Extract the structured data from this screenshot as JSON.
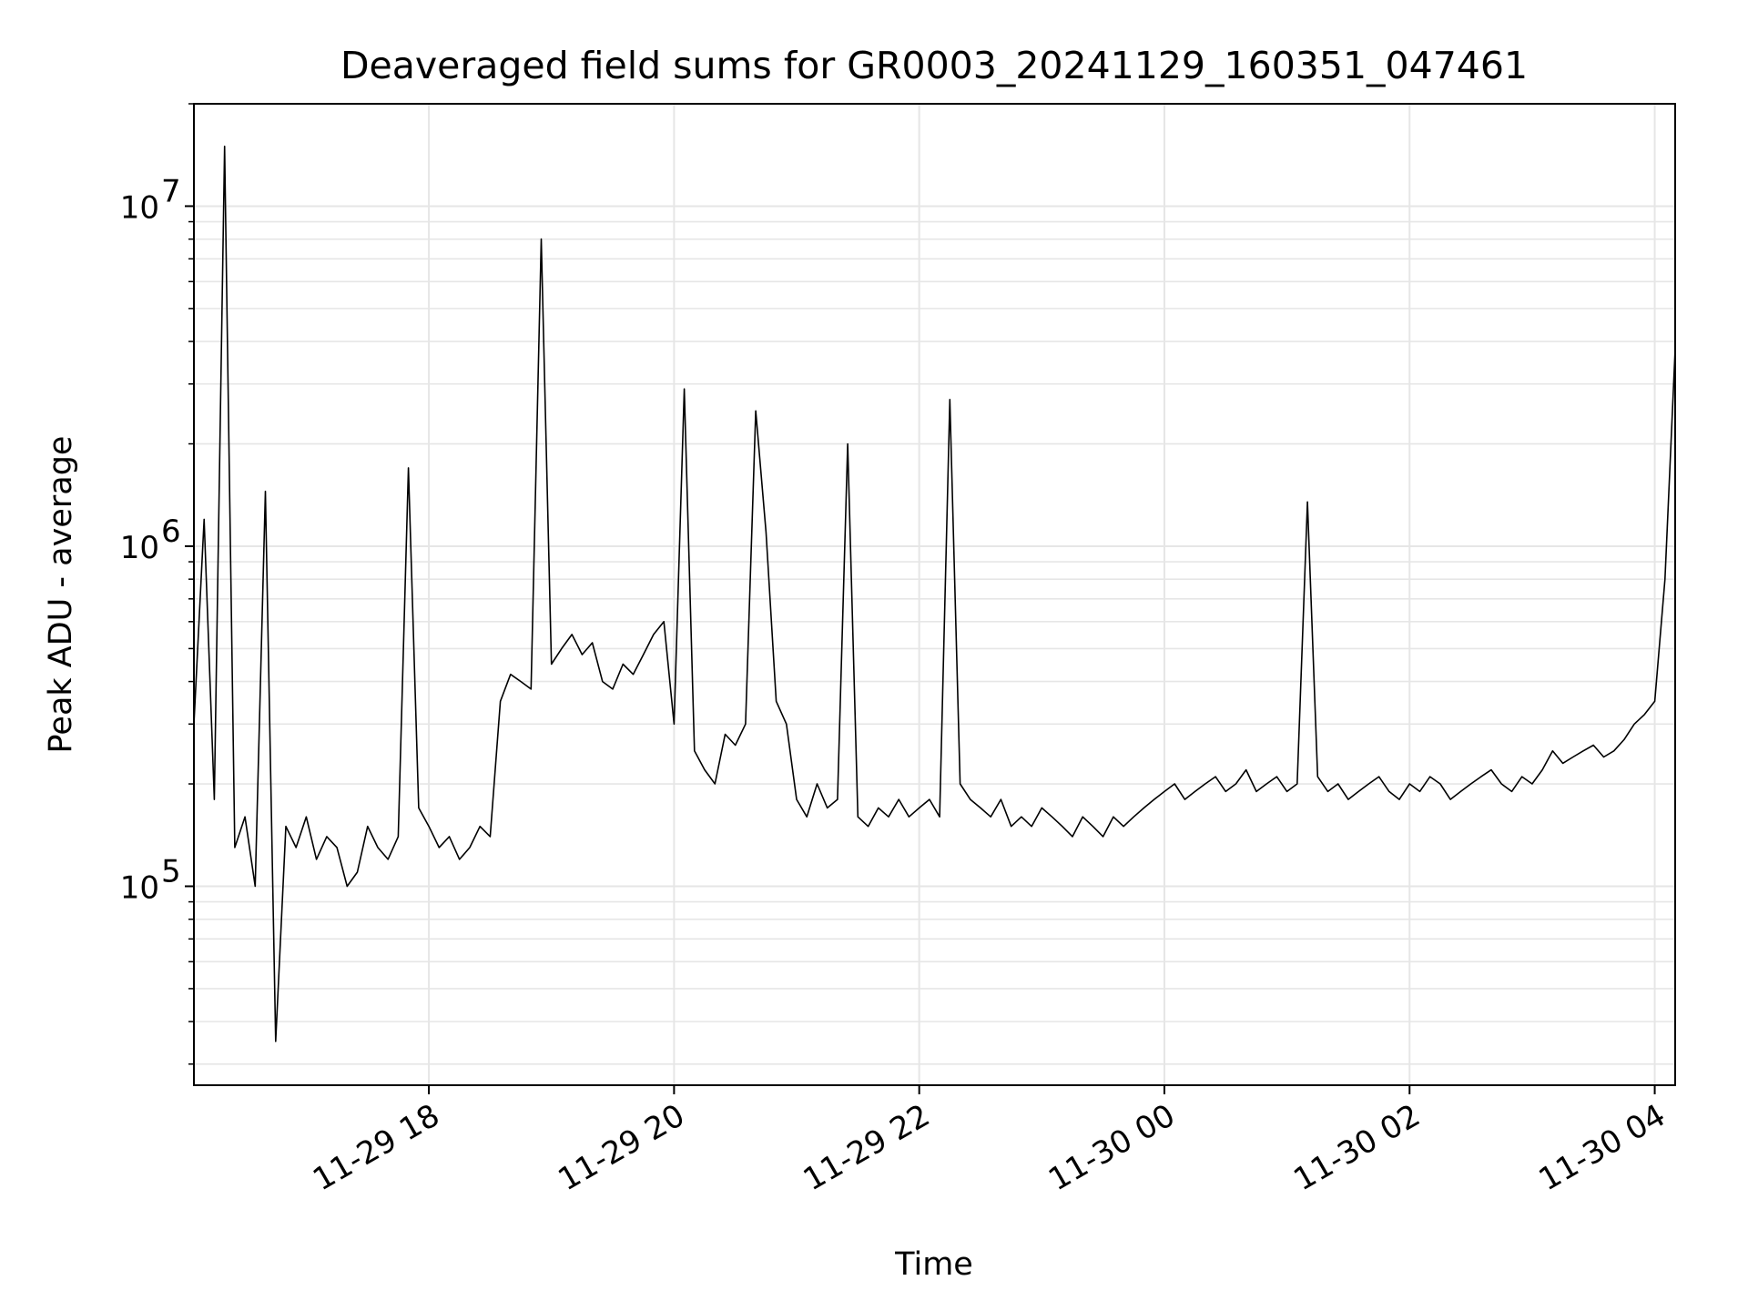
{
  "chart_data": {
    "type": "line",
    "title": "Deaveraged field sums for GR0003_20241129_160351_047461",
    "xlabel": "Time",
    "ylabel": "Peak ADU - average",
    "yscale": "log",
    "ylim": [
      26000,
      20000000
    ],
    "xlim": [
      "2024-11-29 16:05",
      "2024-11-30 04:10"
    ],
    "grid": true,
    "line_color": "#000000",
    "grid_color": "#e6e6e6",
    "x_ticks": [
      {
        "value": "2024-11-29 18:00",
        "label": "11-29 18"
      },
      {
        "value": "2024-11-29 20:00",
        "label": "11-29 20"
      },
      {
        "value": "2024-11-29 22:00",
        "label": "11-29 22"
      },
      {
        "value": "2024-11-30 00:00",
        "label": "11-30 00"
      },
      {
        "value": "2024-11-30 02:00",
        "label": "11-30 02"
      },
      {
        "value": "2024-11-30 04:00",
        "label": "11-30 04"
      }
    ],
    "y_ticks": [
      {
        "value": 100000,
        "base": "10",
        "exp": "5"
      },
      {
        "value": 1000000,
        "base": "10",
        "exp": "6"
      },
      {
        "value": 10000000,
        "base": "10",
        "exp": "7"
      }
    ],
    "series": [
      {
        "x": [
          "2024-11-29 16:05",
          "2024-11-29 16:10",
          "2024-11-29 16:15",
          "2024-11-29 16:20",
          "2024-11-29 16:25",
          "2024-11-29 16:30",
          "2024-11-29 16:35",
          "2024-11-29 16:40",
          "2024-11-29 16:45",
          "2024-11-29 16:50",
          "2024-11-29 16:55",
          "2024-11-29 17:00",
          "2024-11-29 17:05",
          "2024-11-29 17:10",
          "2024-11-29 17:15",
          "2024-11-29 17:20",
          "2024-11-29 17:25",
          "2024-11-29 17:30",
          "2024-11-29 17:35",
          "2024-11-29 17:40",
          "2024-11-29 17:45",
          "2024-11-29 17:50",
          "2024-11-29 17:55",
          "2024-11-29 18:00",
          "2024-11-29 18:05",
          "2024-11-29 18:10",
          "2024-11-29 18:15",
          "2024-11-29 18:20",
          "2024-11-29 18:25",
          "2024-11-29 18:30",
          "2024-11-29 18:35",
          "2024-11-29 18:40",
          "2024-11-29 18:45",
          "2024-11-29 18:50",
          "2024-11-29 18:55",
          "2024-11-29 19:00",
          "2024-11-29 19:05",
          "2024-11-29 19:10",
          "2024-11-29 19:15",
          "2024-11-29 19:20",
          "2024-11-29 19:25",
          "2024-11-29 19:30",
          "2024-11-29 19:35",
          "2024-11-29 19:40",
          "2024-11-29 19:45",
          "2024-11-29 19:50",
          "2024-11-29 19:55",
          "2024-11-29 20:00",
          "2024-11-29 20:05",
          "2024-11-29 20:10",
          "2024-11-29 20:15",
          "2024-11-29 20:20",
          "2024-11-29 20:25",
          "2024-11-29 20:30",
          "2024-11-29 20:35",
          "2024-11-29 20:40",
          "2024-11-29 20:45",
          "2024-11-29 20:50",
          "2024-11-29 20:55",
          "2024-11-29 21:00",
          "2024-11-29 21:05",
          "2024-11-29 21:10",
          "2024-11-29 21:15",
          "2024-11-29 21:20",
          "2024-11-29 21:25",
          "2024-11-29 21:30",
          "2024-11-29 21:35",
          "2024-11-29 21:40",
          "2024-11-29 21:45",
          "2024-11-29 21:50",
          "2024-11-29 21:55",
          "2024-11-29 22:00",
          "2024-11-29 22:05",
          "2024-11-29 22:10",
          "2024-11-29 22:15",
          "2024-11-29 22:20",
          "2024-11-29 22:25",
          "2024-11-29 22:30",
          "2024-11-29 22:35",
          "2024-11-29 22:40",
          "2024-11-29 22:45",
          "2024-11-29 22:50",
          "2024-11-29 22:55",
          "2024-11-29 23:00",
          "2024-11-29 23:05",
          "2024-11-29 23:10",
          "2024-11-29 23:15",
          "2024-11-29 23:20",
          "2024-11-29 23:25",
          "2024-11-29 23:30",
          "2024-11-29 23:35",
          "2024-11-29 23:40",
          "2024-11-29 23:45",
          "2024-11-29 23:50",
          "2024-11-29 23:55",
          "2024-11-30 00:00",
          "2024-11-30 00:05",
          "2024-11-30 00:10",
          "2024-11-30 00:15",
          "2024-11-30 00:20",
          "2024-11-30 00:25",
          "2024-11-30 00:30",
          "2024-11-30 00:35",
          "2024-11-30 00:40",
          "2024-11-30 00:45",
          "2024-11-30 00:50",
          "2024-11-30 00:55",
          "2024-11-30 01:00",
          "2024-11-30 01:05",
          "2024-11-30 01:10",
          "2024-11-30 01:15",
          "2024-11-30 01:20",
          "2024-11-30 01:25",
          "2024-11-30 01:30",
          "2024-11-30 01:35",
          "2024-11-30 01:40",
          "2024-11-30 01:45",
          "2024-11-30 01:50",
          "2024-11-30 01:55",
          "2024-11-30 02:00",
          "2024-11-30 02:05",
          "2024-11-30 02:10",
          "2024-11-30 02:15",
          "2024-11-30 02:20",
          "2024-11-30 02:25",
          "2024-11-30 02:30",
          "2024-11-30 02:35",
          "2024-11-30 02:40",
          "2024-11-30 02:45",
          "2024-11-30 02:50",
          "2024-11-30 02:55",
          "2024-11-30 03:00",
          "2024-11-30 03:05",
          "2024-11-30 03:10",
          "2024-11-30 03:15",
          "2024-11-30 03:20",
          "2024-11-30 03:25",
          "2024-11-30 03:30",
          "2024-11-30 03:35",
          "2024-11-30 03:40",
          "2024-11-30 03:45",
          "2024-11-30 03:50",
          "2024-11-30 03:55",
          "2024-11-30 04:00",
          "2024-11-30 04:05",
          "2024-11-30 04:10"
        ],
        "y": [
          300000,
          1200000,
          180000,
          15000000,
          130000,
          160000,
          100000,
          1450000,
          35000,
          150000,
          130000,
          160000,
          120000,
          140000,
          130000,
          100000,
          110000,
          150000,
          130000,
          120000,
          140000,
          1700000,
          170000,
          150000,
          130000,
          140000,
          120000,
          130000,
          150000,
          140000,
          350000,
          420000,
          400000,
          380000,
          8000000,
          450000,
          500000,
          550000,
          480000,
          520000,
          400000,
          380000,
          450000,
          420000,
          480000,
          550000,
          600000,
          300000,
          2900000,
          250000,
          220000,
          200000,
          280000,
          260000,
          300000,
          2500000,
          1100000,
          350000,
          300000,
          180000,
          160000,
          200000,
          170000,
          180000,
          2000000,
          160000,
          150000,
          170000,
          160000,
          180000,
          160000,
          170000,
          180000,
          160000,
          2700000,
          200000,
          180000,
          170000,
          160000,
          180000,
          150000,
          160000,
          150000,
          170000,
          160000,
          150000,
          140000,
          160000,
          150000,
          140000,
          160000,
          150000,
          160000,
          170000,
          180000,
          190000,
          200000,
          180000,
          190000,
          200000,
          210000,
          190000,
          200000,
          220000,
          190000,
          200000,
          210000,
          190000,
          200000,
          1350000,
          210000,
          190000,
          200000,
          180000,
          190000,
          200000,
          210000,
          190000,
          180000,
          200000,
          190000,
          210000,
          200000,
          180000,
          190000,
          200000,
          210000,
          220000,
          200000,
          190000,
          210000,
          200000,
          220000,
          250000,
          230000,
          240000,
          250000,
          260000,
          240000,
          250000,
          270000,
          300000,
          320000,
          350000,
          800000,
          3800000
        ]
      }
    ]
  }
}
